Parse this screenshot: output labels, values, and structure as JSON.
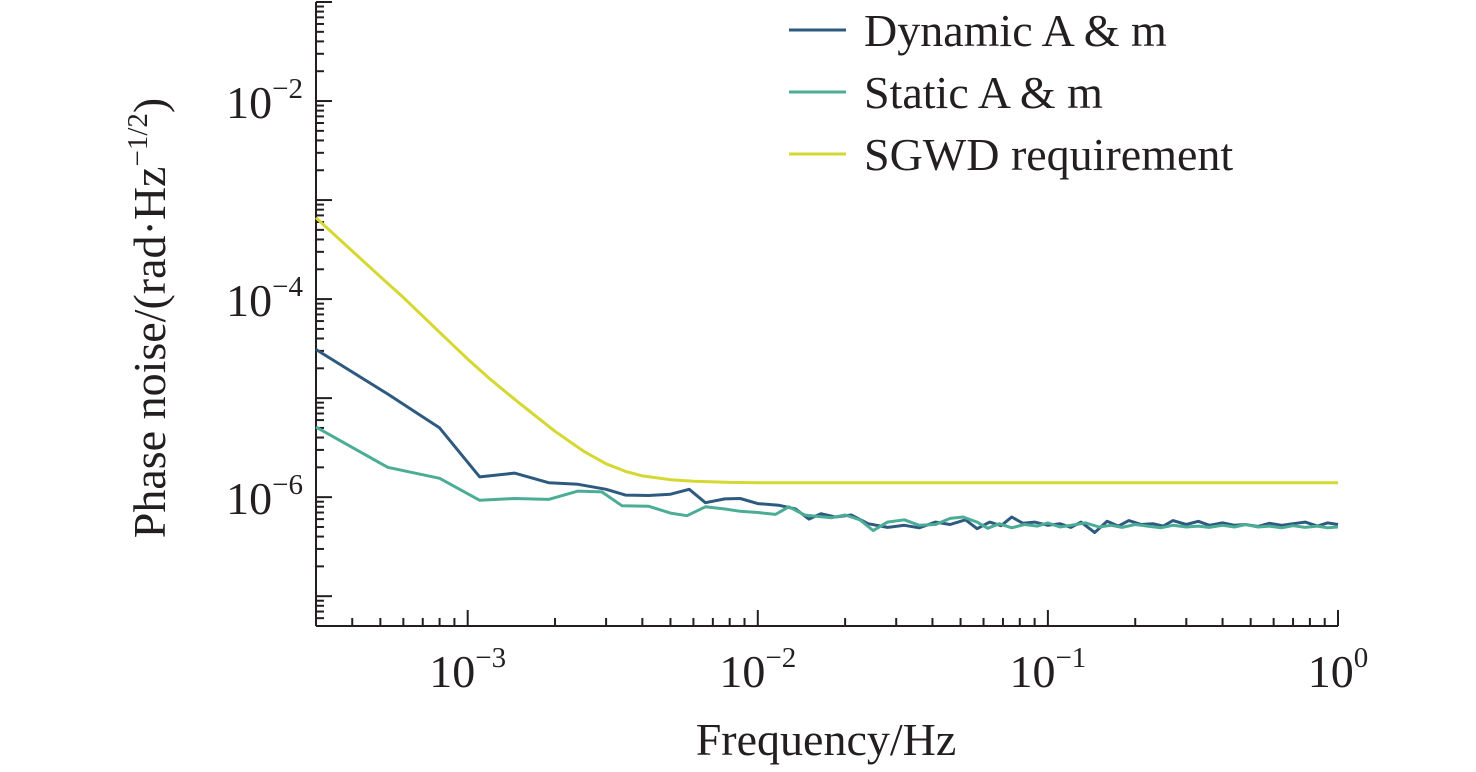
{
  "chart_data": {
    "type": "line",
    "title": "",
    "xlabel": "Frequency/Hz",
    "ylabel": "Phase noise/(rad·Hz",
    "ylabel_unit_exponent": "−1/2",
    "ylabel_suffix": ")",
    "x_scale": "log",
    "y_scale": "log",
    "xlim": [
      0.0003,
      1
    ],
    "ylim": [
      5e-08,
      0.1
    ],
    "grid": false,
    "legend_position": "top-right",
    "x_ticks": [
      {
        "base": "10",
        "exp": "−3",
        "value": 0.001
      },
      {
        "base": "10",
        "exp": "−2",
        "value": 0.01
      },
      {
        "base": "10",
        "exp": "−1",
        "value": 0.1
      },
      {
        "base": "10",
        "exp": "0",
        "value": 1
      }
    ],
    "y_ticks": [
      {
        "base": "10",
        "exp": "−6",
        "value": 1e-06
      },
      {
        "base": "10",
        "exp": "−4",
        "value": 0.0001
      },
      {
        "base": "10",
        "exp": "−2",
        "value": 0.01
      }
    ],
    "series": [
      {
        "name": "Dynamic A & m",
        "color": "#2e5a80",
        "points": [
          [
            0.0003,
            3.1e-05
          ],
          [
            0.00053,
            1.1e-05
          ],
          [
            0.0008,
            5e-06
          ],
          [
            0.0011,
            1.6e-06
          ],
          [
            0.00145,
            1.75e-06
          ],
          [
            0.0019,
            1.4e-06
          ],
          [
            0.0024,
            1.35e-06
          ],
          [
            0.003,
            1.2e-06
          ],
          [
            0.0035,
            1.05e-06
          ],
          [
            0.0042,
            1.04e-06
          ],
          [
            0.005,
            1.07e-06
          ],
          [
            0.0058,
            1.2e-06
          ],
          [
            0.0066,
            8.8e-07
          ],
          [
            0.0077,
            9.6e-07
          ],
          [
            0.0087,
            9.7e-07
          ],
          [
            0.01,
            8.6e-07
          ],
          [
            0.0118,
            8.3e-07
          ],
          [
            0.0135,
            7.6e-07
          ],
          [
            0.015,
            6e-07
          ],
          [
            0.0165,
            6.8e-07
          ],
          [
            0.0185,
            6.3e-07
          ],
          [
            0.021,
            6.6e-07
          ],
          [
            0.024,
            5.4e-07
          ],
          [
            0.028,
            4.95e-07
          ],
          [
            0.032,
            5.2e-07
          ],
          [
            0.036,
            4.9e-07
          ],
          [
            0.041,
            5.6e-07
          ],
          [
            0.046,
            5.3e-07
          ],
          [
            0.052,
            5.9e-07
          ],
          [
            0.057,
            4.8e-07
          ],
          [
            0.063,
            5.6e-07
          ],
          [
            0.069,
            5.15e-07
          ],
          [
            0.075,
            6.3e-07
          ],
          [
            0.082,
            5.45e-07
          ],
          [
            0.09,
            5.6e-07
          ],
          [
            0.1,
            5.2e-07
          ],
          [
            0.11,
            5.4e-07
          ],
          [
            0.12,
            4.95e-07
          ],
          [
            0.13,
            5.6e-07
          ],
          [
            0.145,
            4.4e-07
          ],
          [
            0.16,
            5.7e-07
          ],
          [
            0.175,
            5.1e-07
          ],
          [
            0.19,
            5.8e-07
          ],
          [
            0.21,
            5.3e-07
          ],
          [
            0.23,
            5.4e-07
          ],
          [
            0.25,
            5.1e-07
          ],
          [
            0.27,
            5.8e-07
          ],
          [
            0.3,
            5.3e-07
          ],
          [
            0.33,
            5.7e-07
          ],
          [
            0.36,
            5.2e-07
          ],
          [
            0.4,
            5.5e-07
          ],
          [
            0.44,
            5.2e-07
          ],
          [
            0.48,
            5.3e-07
          ],
          [
            0.53,
            5.05e-07
          ],
          [
            0.58,
            5.45e-07
          ],
          [
            0.64,
            5.2e-07
          ],
          [
            0.7,
            5.4e-07
          ],
          [
            0.77,
            5.6e-07
          ],
          [
            0.85,
            5.1e-07
          ],
          [
            0.92,
            5.5e-07
          ],
          [
            1.0,
            5.3e-07
          ]
        ]
      },
      {
        "name": "Static A & m",
        "color": "#4cad96",
        "points": [
          [
            0.0003,
            5.1e-06
          ],
          [
            0.00053,
            2e-06
          ],
          [
            0.0008,
            1.55e-06
          ],
          [
            0.0011,
            9.3e-07
          ],
          [
            0.00145,
            9.7e-07
          ],
          [
            0.0019,
            9.5e-07
          ],
          [
            0.0024,
            1.15e-06
          ],
          [
            0.0029,
            1.13e-06
          ],
          [
            0.0034,
            8.2e-07
          ],
          [
            0.0042,
            8.1e-07
          ],
          [
            0.005,
            6.9e-07
          ],
          [
            0.0057,
            6.5e-07
          ],
          [
            0.0066,
            8e-07
          ],
          [
            0.0077,
            7.6e-07
          ],
          [
            0.0087,
            7.2e-07
          ],
          [
            0.01,
            7e-07
          ],
          [
            0.0115,
            6.7e-07
          ],
          [
            0.0128,
            8e-07
          ],
          [
            0.0145,
            6.6e-07
          ],
          [
            0.016,
            6.4e-07
          ],
          [
            0.018,
            6.2e-07
          ],
          [
            0.02,
            6.6e-07
          ],
          [
            0.0225,
            5.9e-07
          ],
          [
            0.025,
            4.6e-07
          ],
          [
            0.028,
            5.6e-07
          ],
          [
            0.032,
            5.9e-07
          ],
          [
            0.036,
            5.2e-07
          ],
          [
            0.041,
            5.3e-07
          ],
          [
            0.046,
            6.1e-07
          ],
          [
            0.051,
            6.3e-07
          ],
          [
            0.057,
            5.6e-07
          ],
          [
            0.062,
            4.85e-07
          ],
          [
            0.068,
            5.4e-07
          ],
          [
            0.075,
            4.9e-07
          ],
          [
            0.083,
            5.3e-07
          ],
          [
            0.092,
            5.1e-07
          ],
          [
            0.1,
            5.5e-07
          ],
          [
            0.11,
            5e-07
          ],
          [
            0.12,
            5.2e-07
          ],
          [
            0.135,
            5.5e-07
          ],
          [
            0.15,
            5e-07
          ],
          [
            0.165,
            5.2e-07
          ],
          [
            0.18,
            4.95e-07
          ],
          [
            0.2,
            5.3e-07
          ],
          [
            0.22,
            5.1e-07
          ],
          [
            0.245,
            4.9e-07
          ],
          [
            0.27,
            5.2e-07
          ],
          [
            0.3,
            5e-07
          ],
          [
            0.33,
            5.1e-07
          ],
          [
            0.36,
            4.95e-07
          ],
          [
            0.4,
            5.2e-07
          ],
          [
            0.44,
            5e-07
          ],
          [
            0.48,
            5.3e-07
          ],
          [
            0.53,
            5e-07
          ],
          [
            0.58,
            5.1e-07
          ],
          [
            0.64,
            4.9e-07
          ],
          [
            0.7,
            5.15e-07
          ],
          [
            0.77,
            4.95e-07
          ],
          [
            0.85,
            5.1e-07
          ],
          [
            0.92,
            4.9e-07
          ],
          [
            1.0,
            5e-07
          ]
        ]
      },
      {
        "name": "SGWD requirement",
        "color": "#d4d831",
        "points": [
          [
            0.0003,
            0.000662
          ],
          [
            0.0004,
            0.000306
          ],
          [
            0.0005,
            0.000168
          ],
          [
            0.0006,
            0.000104
          ],
          [
            0.0008,
            4.62e-05
          ],
          [
            0.001,
            2.48e-05
          ],
          [
            0.0012,
            1.54e-05
          ],
          [
            0.0015,
            9e-06
          ],
          [
            0.002,
            4.62e-06
          ],
          [
            0.0025,
            2.93e-06
          ],
          [
            0.003,
            2.17e-06
          ],
          [
            0.0035,
            1.82e-06
          ],
          [
            0.004,
            1.64e-06
          ],
          [
            0.005,
            1.5e-06
          ],
          [
            0.006,
            1.45e-06
          ],
          [
            0.008,
            1.41e-06
          ],
          [
            0.01,
            1.4e-06
          ],
          [
            0.02,
            1.4e-06
          ],
          [
            0.05,
            1.4e-06
          ],
          [
            0.1,
            1.4e-06
          ],
          [
            0.2,
            1.4e-06
          ],
          [
            0.5,
            1.4e-06
          ],
          [
            1.0,
            1.4e-06
          ]
        ]
      }
    ]
  }
}
